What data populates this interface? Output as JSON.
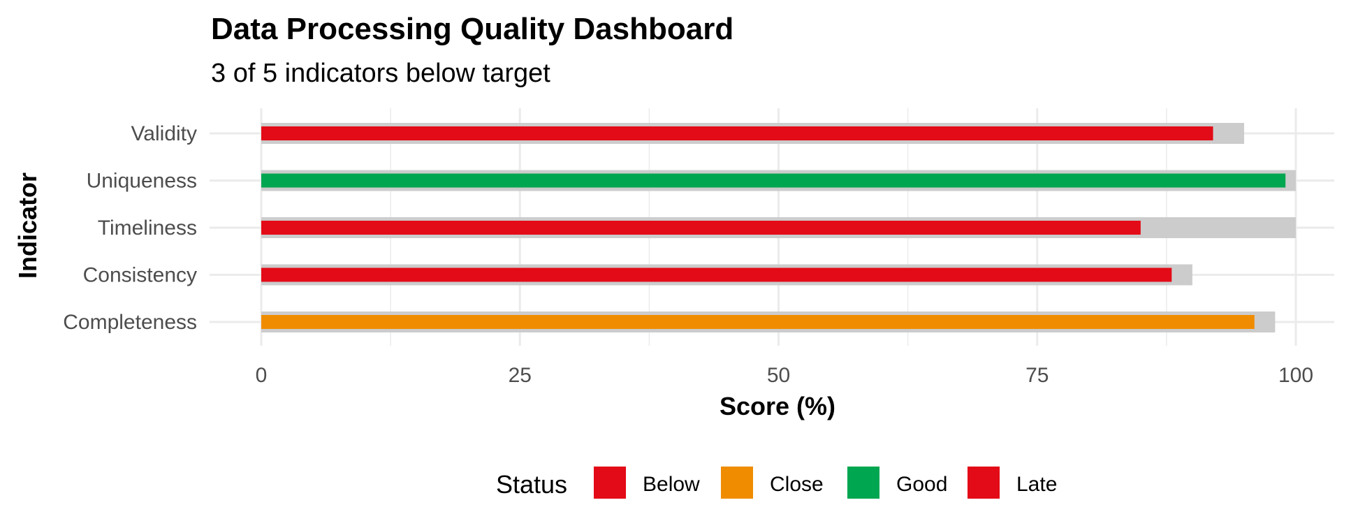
{
  "chart_data": {
    "type": "bar",
    "orientation": "horizontal",
    "title": "Data Processing Quality Dashboard",
    "subtitle": "3 of 5 indicators below target",
    "xlabel": "Score (%)",
    "ylabel": "Indicator",
    "xlim": [
      0,
      100
    ],
    "x_ticks": [
      "0",
      "25",
      "50",
      "75",
      "100"
    ],
    "x_tick_values": [
      0,
      25,
      50,
      75,
      100
    ],
    "categories": [
      "Completeness",
      "Consistency",
      "Timeliness",
      "Uniqueness",
      "Validity"
    ],
    "series": [
      {
        "name": "Target",
        "values": [
          98,
          90,
          100,
          100,
          95
        ],
        "color": "#cccccc"
      },
      {
        "name": "Score",
        "values": [
          96,
          88,
          85,
          99,
          92
        ],
        "status": [
          "Close",
          "Below",
          "Late",
          "Good",
          "Below"
        ]
      }
    ],
    "legend": {
      "title": "Status",
      "position": "bottom",
      "items": [
        {
          "label": "Below",
          "color": "#e30b17"
        },
        {
          "label": "Close",
          "color": "#f08c00"
        },
        {
          "label": "Good",
          "color": "#00a650"
        },
        {
          "label": "Late",
          "color": "#e30b17"
        }
      ]
    },
    "grid": true
  }
}
